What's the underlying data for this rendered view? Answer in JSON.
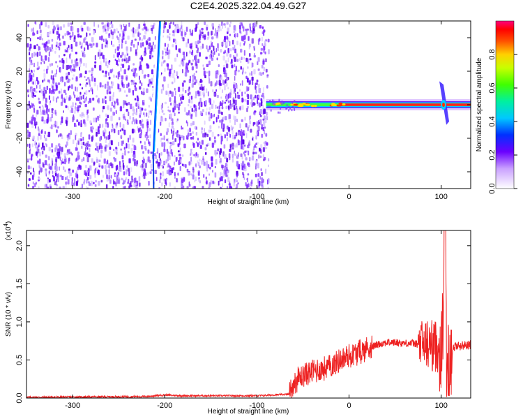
{
  "figure": {
    "title": "C2E4.2025.322.04.49.G27"
  },
  "chart_data": [
    {
      "type": "heatmap",
      "xlabel": "Height of straight line (km)",
      "ylabel": "Frequency (Hz)",
      "xlim": [
        -350,
        132
      ],
      "ylim": [
        -50,
        50
      ],
      "x_ticks": [
        -300,
        -200,
        -100,
        0,
        100
      ],
      "y_ticks": [
        -40,
        -20,
        0,
        20,
        40
      ],
      "colorbar": {
        "label": "Normalized spectral amplitude",
        "range": [
          0,
          1
        ],
        "ticks": [
          0.0,
          0.2,
          0.4,
          0.6,
          0.8
        ]
      },
      "features": {
        "noise_region_x": [
          -350,
          -88
        ],
        "streak_freq_at_-212km": -28,
        "streak_freq_at_-205km": 50,
        "carrier_freq_hz": 0,
        "carrier_start_x": -90,
        "burst_x": 101
      }
    },
    {
      "type": "line",
      "xlabel": "Height of straight line (km)",
      "ylabel": "SNR (10 * v/v)",
      "y_scale_label": "(x10",
      "y_scale_exponent": "4",
      "xlim": [
        -350,
        132
      ],
      "ylim": [
        0,
        2.2
      ],
      "x_ticks": [
        -300,
        -200,
        -100,
        0,
        100
      ],
      "y_ticks": [
        0.0,
        0.5,
        1.0,
        1.5,
        2.0
      ],
      "series": [
        {
          "color": "#ee2222",
          "points": [
            [
              -350,
              0.01
            ],
            [
              -220,
              0.02
            ],
            [
              -200,
              0.04
            ],
            [
              -180,
              0.03
            ],
            [
              -100,
              0.03
            ],
            [
              -65,
              0.05
            ],
            [
              -60,
              0.2
            ],
            [
              -50,
              0.3
            ],
            [
              -40,
              0.35
            ],
            [
              -30,
              0.38
            ],
            [
              -20,
              0.42
            ],
            [
              -10,
              0.5
            ],
            [
              0,
              0.55
            ],
            [
              10,
              0.6
            ],
            [
              20,
              0.65
            ],
            [
              30,
              0.7
            ],
            [
              40,
              0.73
            ],
            [
              50,
              0.73
            ],
            [
              60,
              0.72
            ],
            [
              70,
              0.72
            ],
            [
              75,
              0.7
            ],
            [
              80,
              0.7
            ],
            [
              88,
              0.7
            ],
            [
              95,
              0.68
            ],
            [
              100,
              0.65
            ],
            [
              102,
              0.9
            ],
            [
              104,
              2.2
            ],
            [
              106,
              0.3
            ],
            [
              110,
              0.6
            ],
            [
              115,
              0.68
            ],
            [
              132,
              0.7
            ]
          ]
        }
      ]
    }
  ]
}
